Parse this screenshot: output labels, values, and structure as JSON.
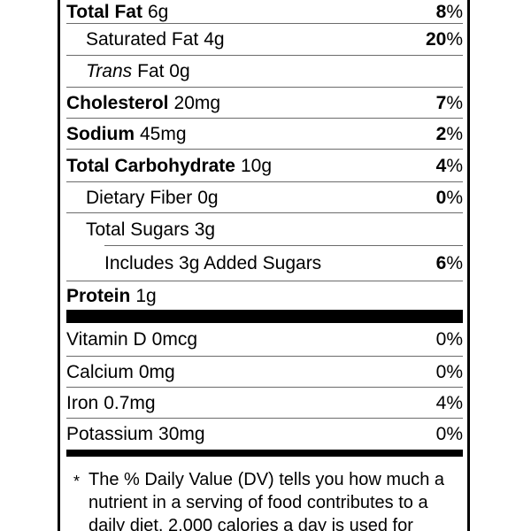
{
  "colors": {
    "text": "#000000",
    "hairline": "#6b6b6b",
    "separator_bar": "#000000",
    "background": "#ffffff",
    "border": "#000000"
  },
  "nutrients": [
    {
      "name": "Total Fat",
      "amount": "6g",
      "dv_num": "8",
      "dv_sign": "%"
    },
    {
      "name": "Saturated Fat",
      "amount": "4g",
      "dv_num": "20",
      "dv_sign": "%"
    },
    {
      "name": "Trans",
      "amount": "Fat 0g"
    },
    {
      "name": "Cholesterol",
      "amount": "20mg",
      "dv_num": "7",
      "dv_sign": "%"
    },
    {
      "name": "Sodium",
      "amount": "45mg",
      "dv_num": "2",
      "dv_sign": "%"
    },
    {
      "name": "Total Carbohydrate",
      "amount": "10g",
      "dv_num": "4",
      "dv_sign": "%"
    },
    {
      "name": "Dietary Fiber",
      "amount": "0g",
      "dv_num": "0",
      "dv_sign": "%"
    },
    {
      "name": "Total Sugars",
      "amount": "3g"
    },
    {
      "name": "Includes 3g Added Sugars",
      "dv_num": "6",
      "dv_sign": "%"
    },
    {
      "name": "Protein",
      "amount": "1g"
    },
    {
      "name": "Vitamin D",
      "amount": "0mcg",
      "dv_num": "0",
      "dv_sign": "%"
    },
    {
      "name": "Calcium",
      "amount": "0mg",
      "dv_num": "0",
      "dv_sign": "%"
    },
    {
      "name": "Iron",
      "amount": "0.7mg",
      "dv_num": "4",
      "dv_sign": "%"
    },
    {
      "name": "Potassium",
      "amount": "30mg",
      "dv_num": "0",
      "dv_sign": "%"
    }
  ],
  "footnote": {
    "asterisk": "*",
    "lines": [
      "The % Daily Value (DV) tells you how much a",
      "nutrient in a serving of food contributes to a",
      "daily diet. 2,000 calories a day is used for"
    ]
  }
}
